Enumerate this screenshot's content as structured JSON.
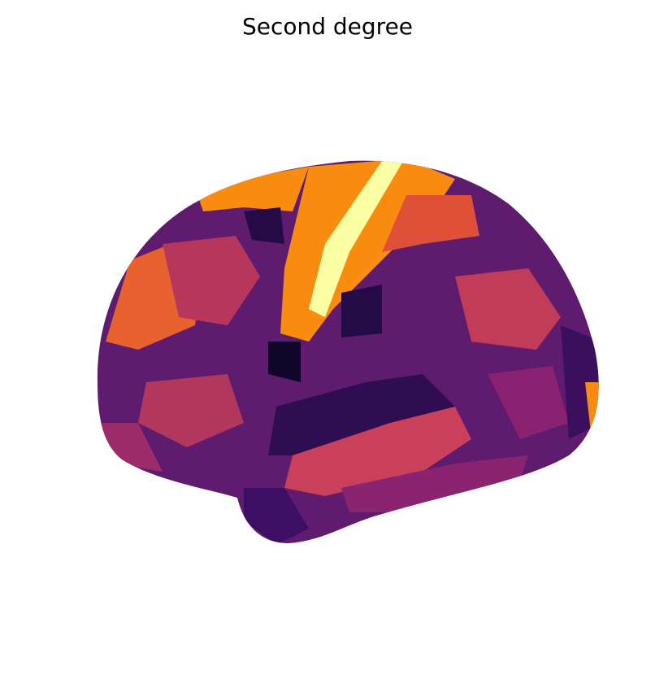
{
  "title": "Second degree"
}
